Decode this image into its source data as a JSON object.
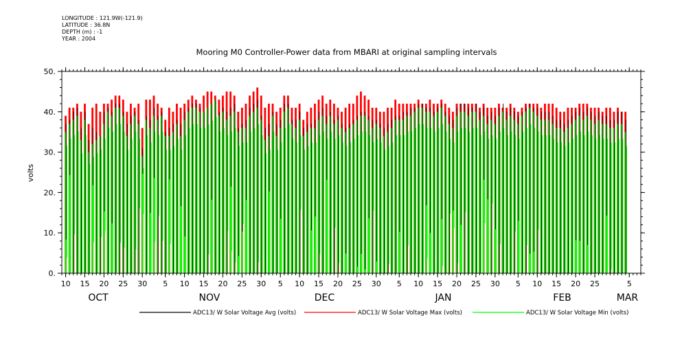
{
  "header": {
    "longitude": "LONGITUDE : 121.9W(-121.9)",
    "latitude": "LATITUDE : 36.8N",
    "depth": "DEPTH (m) : -1",
    "year": "YEAR : 2004"
  },
  "chart_data": {
    "type": "bar",
    "title": "Mooring M0 Controller-Power data from MBARI at original sampling intervals",
    "ylabel": "volts",
    "ylim": [
      0,
      50
    ],
    "yticks": [
      0,
      10,
      20,
      30,
      40,
      50
    ],
    "ytick_labels": [
      "0.",
      "10.",
      "20.",
      "30.",
      "40.",
      "50."
    ],
    "xlim_days": [
      -1,
      150
    ],
    "day_ticks": [
      {
        "day": 0,
        "label": "10"
      },
      {
        "day": 5,
        "label": "15"
      },
      {
        "day": 10,
        "label": "20"
      },
      {
        "day": 15,
        "label": "25"
      },
      {
        "day": 20,
        "label": "30"
      },
      {
        "day": 26,
        "label": "5"
      },
      {
        "day": 31,
        "label": "10"
      },
      {
        "day": 36,
        "label": "15"
      },
      {
        "day": 41,
        "label": "20"
      },
      {
        "day": 46,
        "label": "25"
      },
      {
        "day": 51,
        "label": "30"
      },
      {
        "day": 56,
        "label": "5"
      },
      {
        "day": 61,
        "label": "10"
      },
      {
        "day": 66,
        "label": "15"
      },
      {
        "day": 71,
        "label": "20"
      },
      {
        "day": 76,
        "label": "25"
      },
      {
        "day": 81,
        "label": "30"
      },
      {
        "day": 87,
        "label": "5"
      },
      {
        "day": 92,
        "label": "10"
      },
      {
        "day": 97,
        "label": "15"
      },
      {
        "day": 102,
        "label": "20"
      },
      {
        "day": 107,
        "label": "25"
      },
      {
        "day": 112,
        "label": "30"
      },
      {
        "day": 118,
        "label": "5"
      },
      {
        "day": 123,
        "label": "10"
      },
      {
        "day": 128,
        "label": "15"
      },
      {
        "day": 133,
        "label": "20"
      },
      {
        "day": 138,
        "label": "25"
      },
      {
        "day": 147,
        "label": "5"
      }
    ],
    "months": [
      {
        "day": 8.5,
        "label": "OCT"
      },
      {
        "day": 37.5,
        "label": "NOV"
      },
      {
        "day": 67.5,
        "label": "DEC"
      },
      {
        "day": 98.5,
        "label": "JAN"
      },
      {
        "day": 129.5,
        "label": "FEB"
      },
      {
        "day": 146.5,
        "label": "MAR"
      }
    ],
    "series": [
      {
        "name": "ADC13/ W Solar Voltage Avg (volts)",
        "color": "#000000",
        "daily_peak": [
          37,
          38,
          40,
          41,
          36,
          40,
          33,
          36,
          35,
          34,
          40,
          41,
          40,
          42,
          42,
          40,
          37,
          39,
          40,
          38,
          31,
          39,
          38,
          41,
          39,
          40,
          35,
          36,
          37,
          38,
          37,
          40,
          41,
          42,
          42,
          41,
          40,
          41,
          42,
          43,
          40,
          41,
          40,
          41,
          42,
          36,
          37,
          38,
          41,
          42,
          43,
          39,
          36,
          37,
          40,
          37,
          38,
          42,
          42,
          38,
          38,
          40,
          36,
          37,
          37,
          38,
          40,
          41,
          39,
          40,
          38,
          39,
          37,
          36,
          37,
          38,
          39,
          40,
          40,
          39,
          38,
          38,
          37,
          36,
          37,
          38,
          39,
          39,
          40,
          40,
          41,
          41,
          42,
          42,
          41,
          41,
          40,
          41,
          42,
          40,
          39,
          38,
          41,
          42,
          42,
          41,
          41,
          42,
          40,
          41,
          39,
          40,
          39,
          41,
          42,
          40,
          41,
          40,
          39,
          40,
          41,
          42,
          41,
          41,
          40,
          40,
          40,
          39,
          38,
          38,
          37,
          38,
          39,
          40,
          41,
          40,
          41,
          40,
          39,
          40,
          39,
          39,
          38,
          38,
          40,
          40,
          38
        ]
      },
      {
        "name": "ADC13/ W Solar Voltage Max (volts)",
        "color": "#ff0000",
        "daily_peak": [
          39,
          41,
          41,
          42,
          40,
          42,
          37,
          41,
          42,
          40,
          42,
          42,
          43,
          44,
          44,
          43,
          40,
          42,
          41,
          42,
          36,
          43,
          43,
          44,
          42,
          41,
          38,
          41,
          40,
          42,
          41,
          42,
          43,
          44,
          43,
          42,
          44,
          45,
          45,
          44,
          43,
          44,
          45,
          45,
          44,
          40,
          41,
          42,
          44,
          45,
          46,
          44,
          41,
          42,
          42,
          40,
          41,
          44,
          44,
          41,
          41,
          42,
          38,
          40,
          41,
          42,
          43,
          44,
          42,
          43,
          42,
          41,
          40,
          41,
          42,
          42,
          44,
          45,
          44,
          43,
          41,
          41,
          40,
          40,
          41,
          41,
          43,
          42,
          42,
          42,
          42,
          42,
          43,
          42,
          42,
          43,
          42,
          42,
          43,
          42,
          41,
          40,
          42,
          42,
          42,
          42,
          42,
          42,
          41,
          42,
          41,
          41,
          41,
          42,
          41,
          41,
          42,
          41,
          40,
          41,
          42,
          42,
          42,
          42,
          41,
          42,
          42,
          42,
          41,
          40,
          40,
          41,
          41,
          41,
          42,
          42,
          42,
          41,
          41,
          41,
          40,
          41,
          41,
          40,
          41,
          40,
          40
        ]
      },
      {
        "name": "ADC13/ W Solar Voltage Min (volts)",
        "color": "#00ff00",
        "daily_peak": [
          35,
          37,
          38,
          39,
          33,
          38,
          30,
          32,
          33,
          34,
          37,
          40,
          39,
          41,
          41,
          39,
          34,
          37,
          39,
          37,
          29,
          38,
          36,
          39,
          38,
          39,
          34,
          34,
          35,
          37,
          34,
          38,
          40,
          41,
          41,
          40,
          40,
          41,
          42,
          43,
          39,
          40,
          38,
          39,
          40,
          35,
          36,
          36,
          39,
          40,
          41,
          38,
          33,
          34,
          39,
          34,
          36,
          40,
          41,
          37,
          36,
          38,
          34,
          35,
          36,
          36,
          38,
          39,
          37,
          39,
          37,
          38,
          36,
          35,
          36,
          37,
          38,
          39,
          39,
          38,
          36,
          37,
          36,
          34,
          35,
          36,
          38,
          38,
          38,
          39,
          39,
          40,
          41,
          41,
          40,
          40,
          39,
          40,
          41,
          39,
          37,
          36,
          39,
          40,
          40,
          39,
          40,
          40,
          38,
          39,
          37,
          38,
          37,
          39,
          40,
          38,
          39,
          38,
          37,
          39,
          40,
          41,
          40,
          39,
          38,
          38,
          38,
          37,
          36,
          36,
          35,
          36,
          37,
          38,
          39,
          38,
          39,
          38,
          37,
          38,
          37,
          37,
          36,
          36,
          37,
          37,
          35
        ]
      }
    ],
    "grid": false,
    "legend_placement": "bottom"
  }
}
